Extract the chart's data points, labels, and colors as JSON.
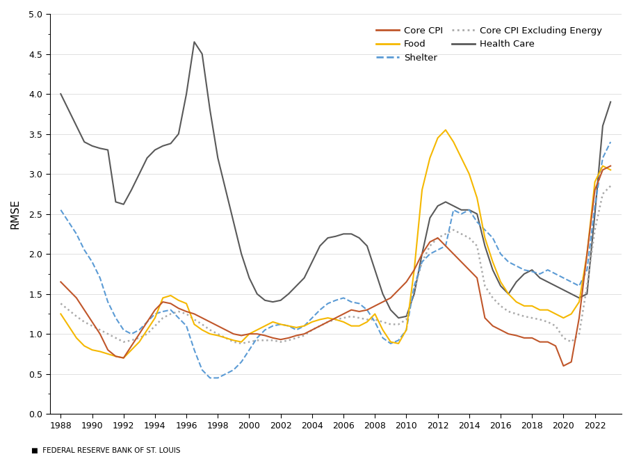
{
  "title": "",
  "ylabel": "RMSE",
  "xlabel": "",
  "ylim": [
    0.0,
    5.0
  ],
  "yticks": [
    0.0,
    0.5,
    1.0,
    1.5,
    2.0,
    2.5,
    3.0,
    3.5,
    4.0,
    4.5,
    5.0
  ],
  "xtick_labels": [
    "1988",
    "1990",
    "1992",
    "1994",
    "1996",
    "1998",
    "2000",
    "2002",
    "2004",
    "2006",
    "2008",
    "2010",
    "2012",
    "2014",
    "2016",
    "2018",
    "2020",
    "2022"
  ],
  "footer": "FEDERAL RESERVE BANK OF ST. LOUIS",
  "series": {
    "core_cpi": {
      "label": "Core CPI",
      "color": "#C0562A",
      "linestyle": "solid",
      "linewidth": 1.5,
      "x": [
        1988,
        1988.5,
        1989,
        1989.5,
        1990,
        1990.5,
        1991,
        1991.5,
        1992,
        1992.5,
        1993,
        1993.5,
        1994,
        1994.5,
        1995,
        1995.5,
        1996,
        1996.5,
        1997,
        1997.5,
        1998,
        1998.5,
        1999,
        1999.5,
        2000,
        2000.5,
        2001,
        2001.5,
        2002,
        2002.5,
        2003,
        2003.5,
        2004,
        2004.5,
        2005,
        2005.5,
        2006,
        2006.5,
        2007,
        2007.5,
        2008,
        2008.5,
        2009,
        2009.5,
        2010,
        2010.5,
        2011,
        2011.5,
        2012,
        2012.5,
        2013,
        2013.5,
        2014,
        2014.5,
        2015,
        2015.5,
        2016,
        2016.5,
        2017,
        2017.5,
        2018,
        2018.5,
        2019,
        2019.5,
        2020,
        2020.5,
        2021,
        2021.5,
        2022,
        2022.5,
        2023
      ],
      "y": [
        1.65,
        1.55,
        1.45,
        1.3,
        1.15,
        1.0,
        0.8,
        0.72,
        0.7,
        0.85,
        1.0,
        1.15,
        1.3,
        1.4,
        1.38,
        1.32,
        1.28,
        1.25,
        1.2,
        1.15,
        1.1,
        1.05,
        1.0,
        0.98,
        1.0,
        1.0,
        0.98,
        0.95,
        0.93,
        0.95,
        0.98,
        1.0,
        1.05,
        1.1,
        1.15,
        1.2,
        1.25,
        1.3,
        1.28,
        1.3,
        1.35,
        1.4,
        1.45,
        1.55,
        1.65,
        1.8,
        2.0,
        2.15,
        2.2,
        2.1,
        2.0,
        1.9,
        1.8,
        1.7,
        1.2,
        1.1,
        1.05,
        1.0,
        0.98,
        0.95,
        0.95,
        0.9,
        0.9,
        0.85,
        0.6,
        0.65,
        1.2,
        2.0,
        2.8,
        3.05,
        3.1
      ]
    },
    "food": {
      "label": "Food",
      "color": "#F5B800",
      "linestyle": "solid",
      "linewidth": 1.5,
      "x": [
        1988,
        1988.5,
        1989,
        1989.5,
        1990,
        1990.5,
        1991,
        1991.5,
        1992,
        1992.5,
        1993,
        1993.5,
        1994,
        1994.5,
        1995,
        1995.5,
        1996,
        1996.5,
        1997,
        1997.5,
        1998,
        1998.5,
        1999,
        1999.5,
        2000,
        2000.5,
        2001,
        2001.5,
        2002,
        2002.5,
        2003,
        2003.5,
        2004,
        2004.5,
        2005,
        2005.5,
        2006,
        2006.5,
        2007,
        2007.5,
        2008,
        2008.5,
        2009,
        2009.5,
        2010,
        2010.5,
        2011,
        2011.5,
        2012,
        2012.5,
        2013,
        2013.5,
        2014,
        2014.5,
        2015,
        2015.5,
        2016,
        2016.5,
        2017,
        2017.5,
        2018,
        2018.5,
        2019,
        2019.5,
        2020,
        2020.5,
        2021,
        2021.5,
        2022,
        2022.5,
        2023
      ],
      "y": [
        1.25,
        1.1,
        0.95,
        0.85,
        0.8,
        0.78,
        0.75,
        0.72,
        0.7,
        0.8,
        0.9,
        1.05,
        1.2,
        1.45,
        1.48,
        1.42,
        1.38,
        1.12,
        1.05,
        1.0,
        0.98,
        0.95,
        0.92,
        0.9,
        1.0,
        1.05,
        1.1,
        1.15,
        1.12,
        1.1,
        1.08,
        1.1,
        1.15,
        1.18,
        1.2,
        1.18,
        1.15,
        1.1,
        1.1,
        1.15,
        1.25,
        1.05,
        0.9,
        0.88,
        1.05,
        1.8,
        2.8,
        3.2,
        3.45,
        3.55,
        3.4,
        3.2,
        3.0,
        2.7,
        2.2,
        1.9,
        1.65,
        1.5,
        1.4,
        1.35,
        1.35,
        1.3,
        1.3,
        1.25,
        1.2,
        1.25,
        1.4,
        2.0,
        2.9,
        3.1,
        3.05
      ]
    },
    "shelter": {
      "label": "Shelter",
      "color": "#5B9BD5",
      "linestyle": "dashed",
      "linewidth": 1.5,
      "x": [
        1988,
        1988.5,
        1989,
        1989.5,
        1990,
        1990.5,
        1991,
        1991.5,
        1992,
        1992.5,
        1993,
        1993.5,
        1994,
        1994.5,
        1995,
        1995.5,
        1996,
        1996.5,
        1997,
        1997.5,
        1998,
        1998.5,
        1999,
        1999.5,
        2000,
        2000.5,
        2001,
        2001.5,
        2002,
        2002.5,
        2003,
        2003.5,
        2004,
        2004.5,
        2005,
        2005.5,
        2006,
        2006.5,
        2007,
        2007.5,
        2008,
        2008.5,
        2009,
        2009.5,
        2010,
        2010.5,
        2011,
        2011.5,
        2012,
        2012.5,
        2013,
        2013.5,
        2014,
        2014.5,
        2015,
        2015.5,
        2016,
        2016.5,
        2017,
        2017.5,
        2018,
        2018.5,
        2019,
        2019.5,
        2020,
        2020.5,
        2021,
        2021.5,
        2022,
        2022.5,
        2023
      ],
      "y": [
        2.55,
        2.4,
        2.25,
        2.05,
        1.9,
        1.7,
        1.4,
        1.2,
        1.05,
        1.0,
        1.05,
        1.15,
        1.25,
        1.28,
        1.3,
        1.2,
        1.1,
        0.8,
        0.55,
        0.45,
        0.45,
        0.5,
        0.55,
        0.65,
        0.8,
        0.95,
        1.05,
        1.1,
        1.12,
        1.1,
        1.05,
        1.1,
        1.2,
        1.3,
        1.38,
        1.42,
        1.45,
        1.4,
        1.38,
        1.3,
        1.15,
        0.95,
        0.88,
        0.92,
        1.05,
        1.6,
        1.9,
        2.0,
        2.05,
        2.1,
        2.55,
        2.5,
        2.55,
        2.4,
        2.3,
        2.2,
        2.0,
        1.9,
        1.85,
        1.8,
        1.78,
        1.75,
        1.8,
        1.75,
        1.7,
        1.65,
        1.6,
        1.8,
        2.6,
        3.2,
        3.4
      ]
    },
    "core_cpi_excl_energy": {
      "label": "Core CPI Excluding Energy",
      "color": "#AAAAAA",
      "linestyle": "dotted",
      "linewidth": 1.8,
      "x": [
        1988,
        1988.5,
        1989,
        1989.5,
        1990,
        1990.5,
        1991,
        1991.5,
        1992,
        1992.5,
        1993,
        1993.5,
        1994,
        1994.5,
        1995,
        1995.5,
        1996,
        1996.5,
        1997,
        1997.5,
        1998,
        1998.5,
        1999,
        1999.5,
        2000,
        2000.5,
        2001,
        2001.5,
        2002,
        2002.5,
        2003,
        2003.5,
        2004,
        2004.5,
        2005,
        2005.5,
        2006,
        2006.5,
        2007,
        2007.5,
        2008,
        2008.5,
        2009,
        2009.5,
        2010,
        2010.5,
        2011,
        2011.5,
        2012,
        2012.5,
        2013,
        2013.5,
        2014,
        2014.5,
        2015,
        2015.5,
        2016,
        2016.5,
        2017,
        2017.5,
        2018,
        2018.5,
        2019,
        2019.5,
        2020,
        2020.5,
        2021,
        2021.5,
        2022,
        2022.5,
        2023
      ],
      "y": [
        1.38,
        1.3,
        1.22,
        1.15,
        1.1,
        1.05,
        1.0,
        0.95,
        0.9,
        0.92,
        0.95,
        1.0,
        1.1,
        1.2,
        1.25,
        1.28,
        1.25,
        1.18,
        1.12,
        1.05,
        1.0,
        0.95,
        0.9,
        0.88,
        0.9,
        0.92,
        0.92,
        0.92,
        0.9,
        0.92,
        0.95,
        0.98,
        1.05,
        1.1,
        1.15,
        1.18,
        1.2,
        1.22,
        1.2,
        1.18,
        1.18,
        1.15,
        1.12,
        1.12,
        1.18,
        1.55,
        1.9,
        2.1,
        2.2,
        2.25,
        2.3,
        2.25,
        2.2,
        2.1,
        1.6,
        1.45,
        1.35,
        1.28,
        1.25,
        1.22,
        1.2,
        1.18,
        1.15,
        1.1,
        0.95,
        0.9,
        1.0,
        1.6,
        2.3,
        2.75,
        2.85
      ]
    },
    "health_care": {
      "label": "Health Care",
      "color": "#595959",
      "linestyle": "solid",
      "linewidth": 1.5,
      "x": [
        1988,
        1988.5,
        1989,
        1989.5,
        1990,
        1990.5,
        1991,
        1991.5,
        1992,
        1992.5,
        1993,
        1993.5,
        1994,
        1994.5,
        1995,
        1995.5,
        1996,
        1996.5,
        1997,
        1997.5,
        1998,
        1998.5,
        1999,
        1999.5,
        2000,
        2000.5,
        2001,
        2001.5,
        2002,
        2002.5,
        2003,
        2003.5,
        2004,
        2004.5,
        2005,
        2005.5,
        2006,
        2006.5,
        2007,
        2007.5,
        2008,
        2008.5,
        2009,
        2009.5,
        2010,
        2010.5,
        2011,
        2011.5,
        2012,
        2012.5,
        2013,
        2013.5,
        2014,
        2014.5,
        2015,
        2015.5,
        2016,
        2016.5,
        2017,
        2017.5,
        2018,
        2018.5,
        2019,
        2019.5,
        2020,
        2020.5,
        2021,
        2021.5,
        2022,
        2022.5,
        2023
      ],
      "y": [
        4.0,
        3.8,
        3.6,
        3.4,
        3.35,
        3.32,
        3.3,
        2.65,
        2.62,
        2.8,
        3.0,
        3.2,
        3.3,
        3.35,
        3.38,
        3.5,
        4.0,
        4.65,
        4.5,
        3.8,
        3.2,
        2.8,
        2.4,
        2.0,
        1.7,
        1.5,
        1.42,
        1.4,
        1.42,
        1.5,
        1.6,
        1.7,
        1.9,
        2.1,
        2.2,
        2.22,
        2.25,
        2.25,
        2.2,
        2.1,
        1.8,
        1.5,
        1.3,
        1.2,
        1.22,
        1.5,
        2.0,
        2.45,
        2.6,
        2.65,
        2.6,
        2.55,
        2.55,
        2.5,
        2.1,
        1.8,
        1.6,
        1.5,
        1.65,
        1.75,
        1.8,
        1.7,
        1.65,
        1.6,
        1.55,
        1.5,
        1.45,
        1.5,
        2.5,
        3.6,
        3.9
      ]
    }
  }
}
